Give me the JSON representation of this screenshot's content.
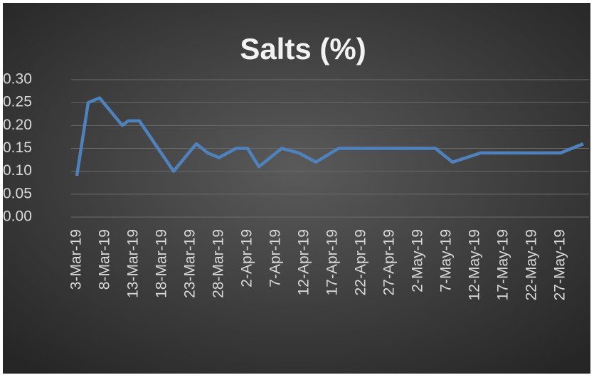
{
  "chart_data": {
    "type": "line",
    "title": "Salts (%)",
    "x": [
      "2019-03-03",
      "2019-03-05",
      "2019-03-07",
      "2019-03-11",
      "2019-03-12",
      "2019-03-14",
      "2019-03-20",
      "2019-03-24",
      "2019-03-26",
      "2019-03-28",
      "2019-03-31",
      "2019-04-02",
      "2019-04-04",
      "2019-04-08",
      "2019-04-11",
      "2019-04-14",
      "2019-04-18",
      "2019-05-05",
      "2019-05-08",
      "2019-05-13",
      "2019-05-27",
      "2019-05-31"
    ],
    "series": [
      {
        "name": "Salts (%)",
        "color": "#4f81bd",
        "values": [
          0.09,
          0.25,
          0.26,
          0.2,
          0.21,
          0.21,
          0.1,
          0.16,
          0.14,
          0.13,
          0.15,
          0.15,
          0.11,
          0.15,
          0.14,
          0.12,
          0.15,
          0.15,
          0.12,
          0.14,
          0.14,
          0.16
        ]
      }
    ],
    "xlim": [
      "2019-03-02",
      "2019-06-01"
    ],
    "xticks": [
      {
        "value": "2019-03-03",
        "label": "3-Mar-19"
      },
      {
        "value": "2019-03-08",
        "label": "8-Mar-19"
      },
      {
        "value": "2019-03-13",
        "label": "13-Mar-19"
      },
      {
        "value": "2019-03-18",
        "label": "18-Mar-19"
      },
      {
        "value": "2019-03-23",
        "label": "23-Mar-19"
      },
      {
        "value": "2019-03-28",
        "label": "28-Mar-19"
      },
      {
        "value": "2019-04-02",
        "label": "2-Apr-19"
      },
      {
        "value": "2019-04-07",
        "label": "7-Apr-19"
      },
      {
        "value": "2019-04-12",
        "label": "12-Apr-19"
      },
      {
        "value": "2019-04-17",
        "label": "17-Apr-19"
      },
      {
        "value": "2019-04-22",
        "label": "22-Apr-19"
      },
      {
        "value": "2019-04-27",
        "label": "27-Apr-19"
      },
      {
        "value": "2019-05-02",
        "label": "2-May-19"
      },
      {
        "value": "2019-05-07",
        "label": "7-May-19"
      },
      {
        "value": "2019-05-12",
        "label": "12-May-19"
      },
      {
        "value": "2019-05-17",
        "label": "17-May-19"
      },
      {
        "value": "2019-05-22",
        "label": "22-May-19"
      },
      {
        "value": "2019-05-27",
        "label": "27-May-19"
      }
    ],
    "ylim": [
      0,
      0.3
    ],
    "yticks": [
      {
        "value": 0,
        "label": "0.00"
      },
      {
        "value": 0.05,
        "label": "0.05"
      },
      {
        "value": 0.1,
        "label": "0.10"
      },
      {
        "value": 0.15,
        "label": "0.15"
      },
      {
        "value": 0.2,
        "label": "0.20"
      },
      {
        "value": 0.25,
        "label": "0.25"
      },
      {
        "value": 0.3,
        "label": "0.30"
      }
    ],
    "grid": true
  }
}
